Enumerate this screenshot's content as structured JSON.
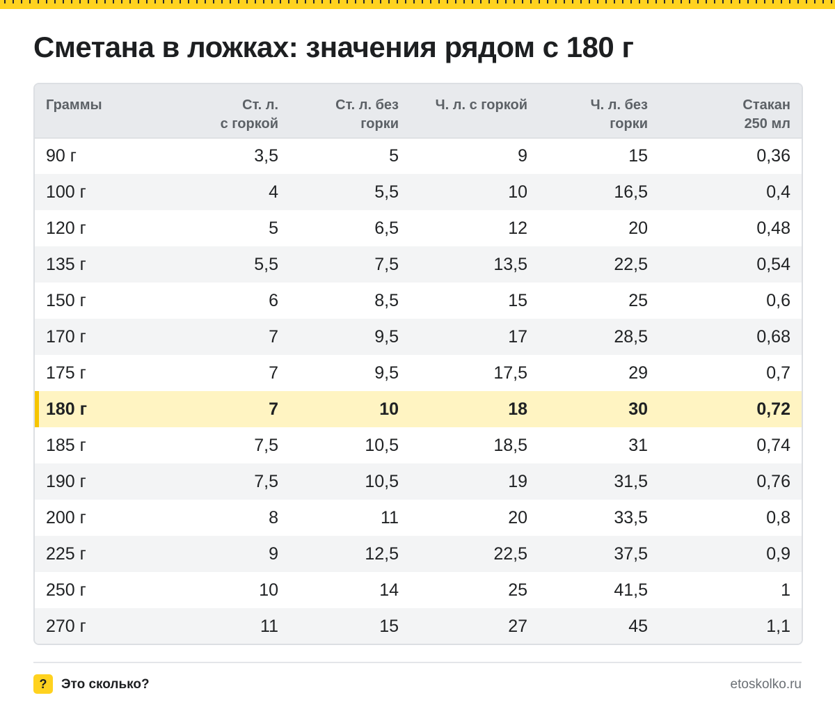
{
  "title": "Сметана в ложках: значения рядом с 180 г",
  "colors": {
    "accent": "#ffd21f",
    "highlight_row": "#fff4c2",
    "highlight_bar": "#f6c500",
    "header_bg": "#e8eaed",
    "stripe_bg": "#f3f4f5"
  },
  "table": {
    "headers": [
      "Граммы",
      "Ст. л.\nс горкой",
      "Ст. л. без\nгорки",
      "Ч. л. с горкой",
      "Ч. л. без\nгорки",
      "Стакан\n250 мл"
    ],
    "rows": [
      [
        "90 г",
        "3,5",
        "5",
        "9",
        "15",
        "0,36"
      ],
      [
        "100 г",
        "4",
        "5,5",
        "10",
        "16,5",
        "0,4"
      ],
      [
        "120 г",
        "5",
        "6,5",
        "12",
        "20",
        "0,48"
      ],
      [
        "135 г",
        "5,5",
        "7,5",
        "13,5",
        "22,5",
        "0,54"
      ],
      [
        "150 г",
        "6",
        "8,5",
        "15",
        "25",
        "0,6"
      ],
      [
        "170 г",
        "7",
        "9,5",
        "17",
        "28,5",
        "0,68"
      ],
      [
        "175 г",
        "7",
        "9,5",
        "17,5",
        "29",
        "0,7"
      ],
      [
        "180 г",
        "7",
        "10",
        "18",
        "30",
        "0,72"
      ],
      [
        "185 г",
        "7,5",
        "10,5",
        "18,5",
        "31",
        "0,74"
      ],
      [
        "190 г",
        "7,5",
        "10,5",
        "19",
        "31,5",
        "0,76"
      ],
      [
        "200 г",
        "8",
        "11",
        "20",
        "33,5",
        "0,8"
      ],
      [
        "225 г",
        "9",
        "12,5",
        "22,5",
        "37,5",
        "0,9"
      ],
      [
        "250 г",
        "10",
        "14",
        "25",
        "41,5",
        "1"
      ],
      [
        "270 г",
        "11",
        "15",
        "27",
        "45",
        "1,1"
      ]
    ],
    "highlighted_row": "180 г"
  },
  "footer": {
    "icon_glyph": "?",
    "brand": "Это сколько?",
    "site": "etoskolko.ru"
  }
}
